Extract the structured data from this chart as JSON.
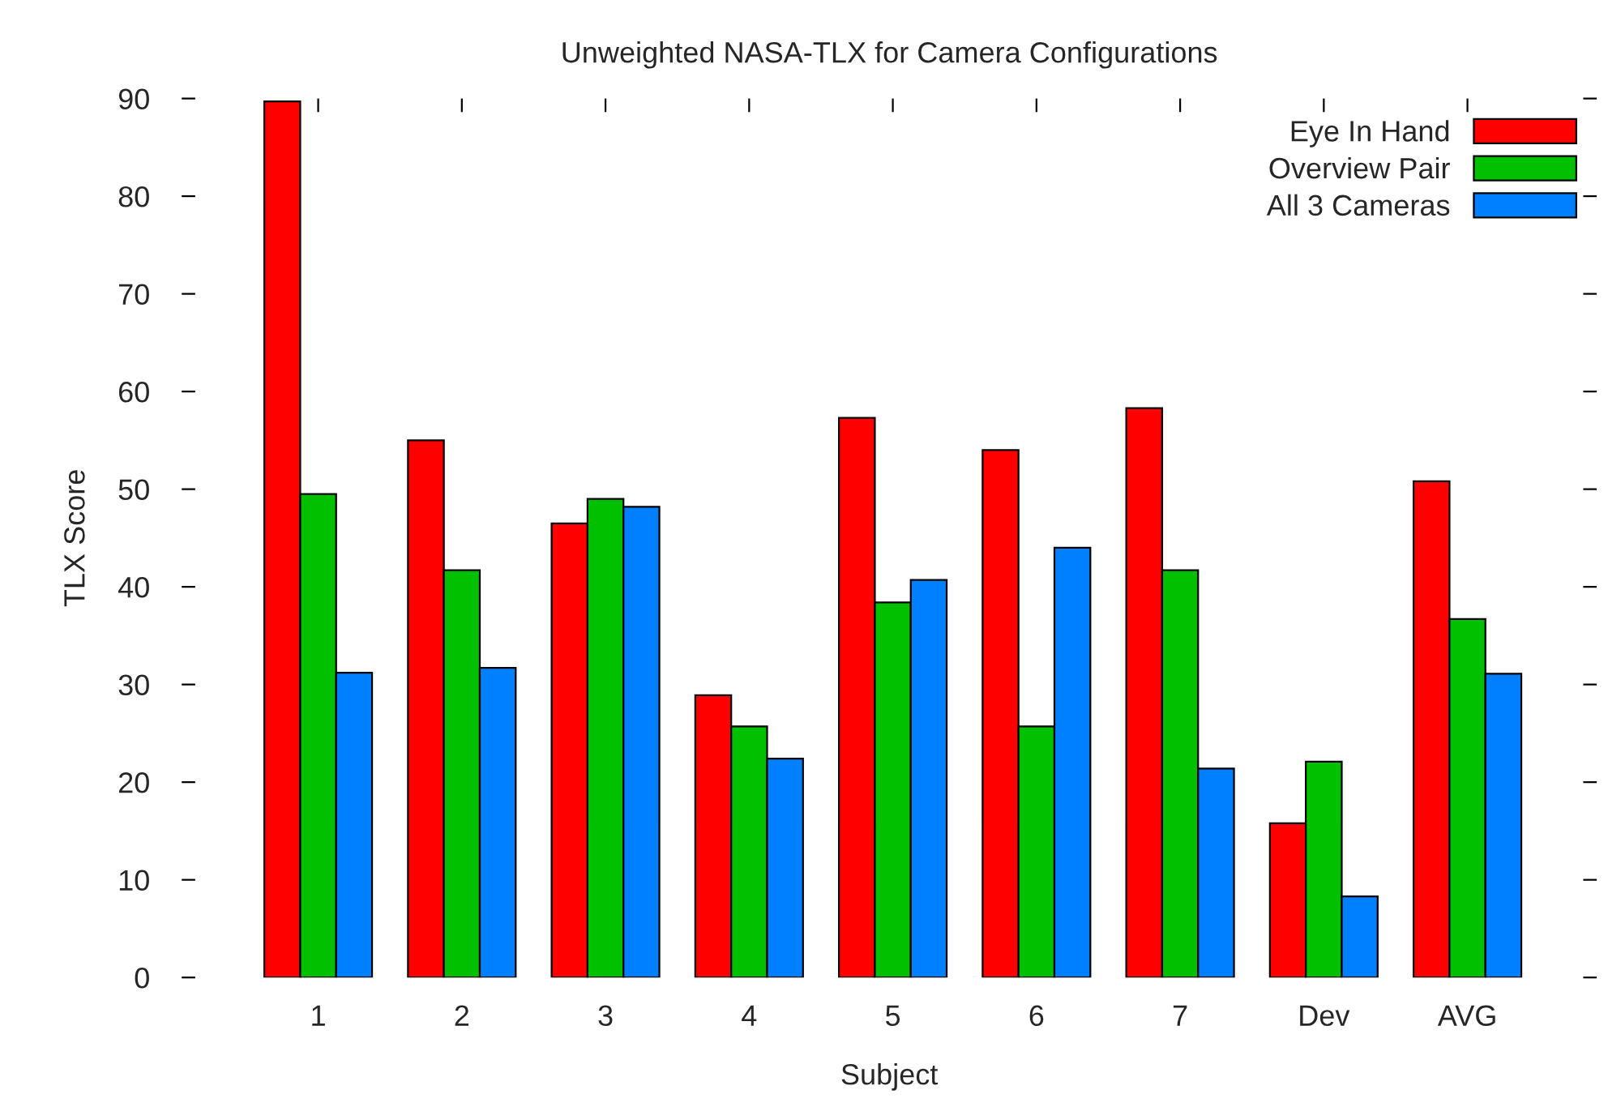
{
  "chart_data": {
    "type": "bar",
    "title": "Unweighted NASA-TLX for Camera Configurations",
    "xlabel": "Subject",
    "ylabel": "TLX Score",
    "categories": [
      "1",
      "2",
      "3",
      "4",
      "5",
      "6",
      "7",
      "Dev",
      "AVG"
    ],
    "series": [
      {
        "name": "Eye In Hand",
        "color": "#ff0000",
        "values": [
          89.7,
          55.0,
          46.5,
          28.9,
          57.3,
          54.0,
          58.3,
          15.8,
          50.8
        ]
      },
      {
        "name": "Overview Pair",
        "color": "#00c000",
        "values": [
          49.5,
          41.7,
          49.0,
          25.7,
          38.4,
          25.7,
          41.7,
          22.1,
          36.7
        ]
      },
      {
        "name": "All 3 Cameras",
        "color": "#0080ff",
        "values": [
          31.2,
          31.7,
          48.2,
          22.4,
          40.7,
          44.0,
          21.4,
          8.3,
          31.1
        ]
      }
    ],
    "ylim": [
      0,
      90
    ],
    "yticks": [
      0,
      10,
      20,
      30,
      40,
      50,
      60,
      70,
      80,
      90
    ],
    "grid": false,
    "legend": "top right"
  }
}
